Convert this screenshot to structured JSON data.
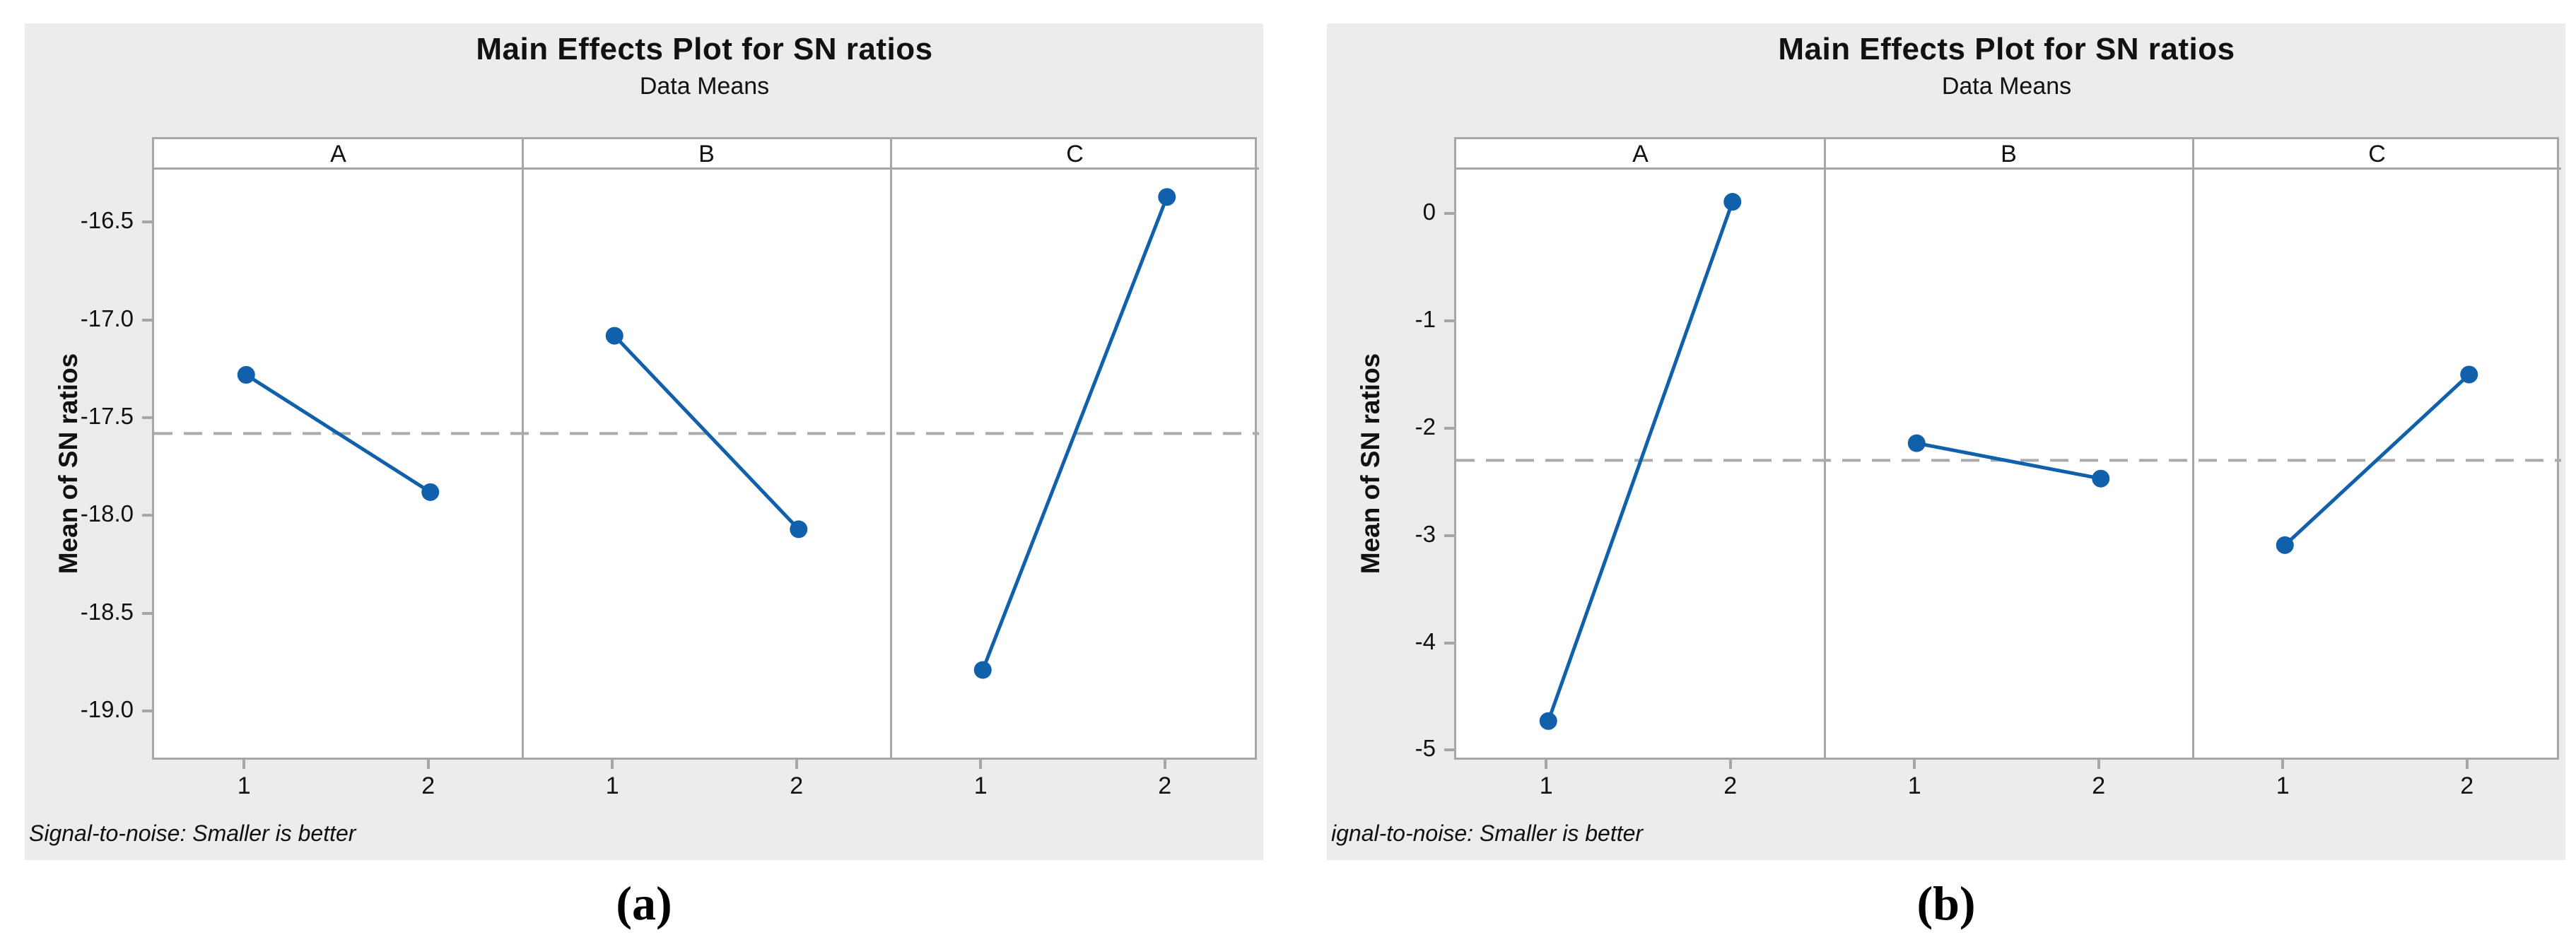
{
  "colors": {
    "series_blue": "#1060ac",
    "reference_gray": "#ababab",
    "panel_border": "#a6a6a6",
    "chart_background": "#ececec",
    "panel_background": "#ffffff"
  },
  "chart_data": [
    {
      "type": "line",
      "caption": "(a)",
      "title": "Main Effects Plot for SN ratios",
      "subtitle": "Data Means",
      "ylabel": "Mean of SN ratios",
      "footnote": "Signal-to-noise: Smaller is better",
      "panels": [
        "A",
        "B",
        "C"
      ],
      "x_tick_labels": [
        "1",
        "2"
      ],
      "x": [
        1,
        2
      ],
      "ylim": [
        -19.25,
        -16.22
      ],
      "yticks": [
        -16.5,
        -17.0,
        -17.5,
        -18.0,
        -18.5,
        -19.0
      ],
      "ytick_labels": [
        "-16.5",
        "-17.0",
        "-17.5",
        "-18.0",
        "-18.5",
        "-19.0"
      ],
      "reference_line": -17.57,
      "grid": "off",
      "legend": "none",
      "series": [
        {
          "name": "A",
          "values": [
            -17.27,
            -17.87
          ]
        },
        {
          "name": "B",
          "values": [
            -17.07,
            -18.06
          ]
        },
        {
          "name": "C",
          "values": [
            -18.78,
            -16.36
          ]
        }
      ]
    },
    {
      "type": "line",
      "caption": "(b)",
      "title": "Main Effects Plot for SN ratios",
      "subtitle": "Data Means",
      "ylabel": "Mean of SN ratios",
      "footnote": "ignal-to-noise: Smaller is better",
      "panels": [
        "A",
        "B",
        "C"
      ],
      "x_tick_labels": [
        "1",
        "2"
      ],
      "x": [
        1,
        2
      ],
      "ylim": [
        -5.09,
        0.43
      ],
      "yticks": [
        0,
        -1,
        -2,
        -3,
        -4,
        -5
      ],
      "ytick_labels": [
        "0",
        "-1",
        "-2",
        "-3",
        "-4",
        "-5"
      ],
      "reference_line": -2.28,
      "grid": "off",
      "legend": "none",
      "series": [
        {
          "name": "A",
          "values": [
            -4.71,
            0.13
          ]
        },
        {
          "name": "B",
          "values": [
            -2.12,
            -2.45
          ]
        },
        {
          "name": "C",
          "values": [
            -3.07,
            -1.48
          ]
        }
      ]
    }
  ]
}
